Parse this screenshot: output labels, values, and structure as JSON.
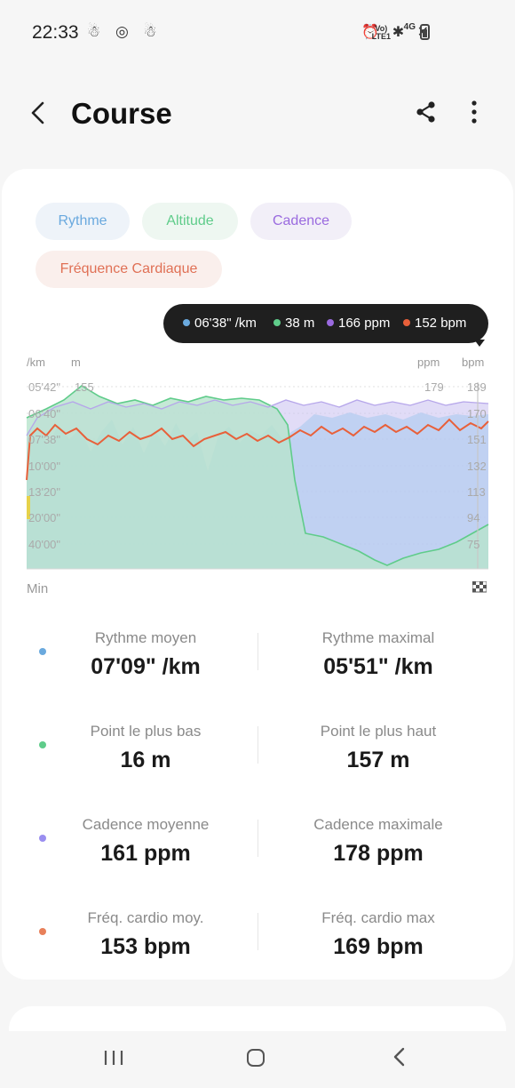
{
  "status": {
    "time": "22:33",
    "left_icons": "☃ ◎ ☃",
    "net_top": "Vo)",
    "net_bottom": "LTE1",
    "sig_label": "4G"
  },
  "header": {
    "title": "Course",
    "back_icon": "back-arrow-icon",
    "share_icon": "share-icon",
    "more_icon": "more-vert-icon"
  },
  "chips": {
    "rythme": "Rythme",
    "altitude": "Altitude",
    "cadence": "Cadence",
    "fc": "Fréquence Cardiaque"
  },
  "tooltip": {
    "pace": "06'38\" /km",
    "alt": "38 m",
    "cad": "166 ppm",
    "hr": "152 bpm"
  },
  "chart": {
    "unit_left1": "/km",
    "unit_left2": "m",
    "unit_right1": "ppm",
    "unit_right2": "bpm",
    "left_ticks": [
      "05'42\"",
      "06'40\"",
      "07'38\"",
      "10'00\"",
      "13'20\"",
      "20'00\"",
      "40'00\""
    ],
    "alt_top": "155",
    "ppm_top": "179",
    "right_ticks": [
      "189",
      "170",
      "151",
      "132",
      "113",
      "94",
      "75"
    ],
    "x_label": "Min"
  },
  "colors": {
    "pace": "#6aa9de",
    "altitude": "#5fcc8a",
    "cadence": "#9a6adf",
    "hr": "#e8603a"
  },
  "stats": [
    {
      "left_label": "Rythme moyen",
      "left_value": "07'09\" /km",
      "right_label": "Rythme maximal",
      "right_value": "05'51\" /km"
    },
    {
      "left_label": "Point le plus bas",
      "left_value": "16 m",
      "right_label": "Point le plus haut",
      "right_value": "157 m"
    },
    {
      "left_label": "Cadence moyenne",
      "left_value": "161 ppm",
      "right_label": "Cadence maximale",
      "right_value": "178 ppm"
    },
    {
      "left_label": "Fréq. cardio moy.",
      "left_value": "153 bpm",
      "right_label": "Fréq. cardio max",
      "right_value": "169 bpm"
    }
  ]
}
